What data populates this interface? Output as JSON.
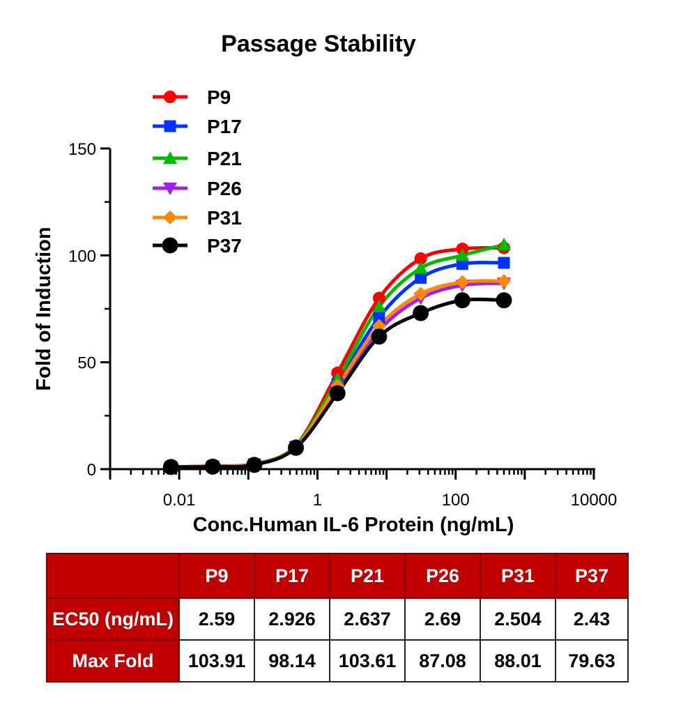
{
  "chart_data": {
    "type": "line",
    "title": "Passage Stability",
    "xlabel": "Conc.Human IL-6 Protein (ng/mL)",
    "ylabel": "Fold of Induction",
    "xscale": "log",
    "xlim": [
      0.001,
      10000
    ],
    "ylim": [
      0,
      150
    ],
    "xticks": [
      {
        "value": 0.01,
        "label": "0.01"
      },
      {
        "value": 1,
        "label": "1"
      },
      {
        "value": 100,
        "label": "100"
      },
      {
        "value": 10000,
        "label": "10000"
      }
    ],
    "yticks": [
      {
        "value": 0,
        "label": "0"
      },
      {
        "value": 50,
        "label": "50"
      },
      {
        "value": 100,
        "label": "100"
      },
      {
        "value": 150,
        "label": "150"
      }
    ],
    "grid": false,
    "legend_position": "top-left",
    "x": [
      0.0076,
      0.0305,
      0.122,
      0.488,
      1.95,
      7.81,
      31.25,
      125,
      500
    ],
    "series": [
      {
        "name": "P9",
        "color": "#ff0000",
        "marker": "circle",
        "values": [
          1.0,
          1.5,
          2.5,
          11,
          45,
          80,
          98.5,
          103,
          103.5
        ]
      },
      {
        "name": "P17",
        "color": "#0033ff",
        "marker": "square",
        "values": [
          1.0,
          1.3,
          2.3,
          10.5,
          40,
          71,
          89.5,
          96,
          96.5
        ]
      },
      {
        "name": "P21",
        "color": "#00bb00",
        "marker": "triangle-up",
        "values": [
          1.0,
          1.4,
          2.4,
          11,
          42,
          76,
          94,
          100,
          105
        ]
      },
      {
        "name": "P26",
        "color": "#a020f0",
        "marker": "triangle-down",
        "values": [
          1.0,
          1.3,
          2.2,
          10.5,
          38,
          65,
          80,
          86,
          87
        ]
      },
      {
        "name": "P31",
        "color": "#ff8800",
        "marker": "diamond",
        "values": [
          1.0,
          1.4,
          2.3,
          10.5,
          39,
          67,
          82,
          87.5,
          88
        ]
      },
      {
        "name": "P37",
        "color": "#000000",
        "marker": "circle-large",
        "values": [
          1.0,
          1.2,
          2.0,
          10,
          35.5,
          62,
          73,
          79,
          79
        ]
      }
    ]
  },
  "table": {
    "headers": [
      "P9",
      "P17",
      "P21",
      "P26",
      "P31",
      "P37"
    ],
    "rows": [
      {
        "label": "EC50 (ng/mL)",
        "values": [
          "2.59",
          "2.926",
          "2.637",
          "2.69",
          "2.504",
          "2.43"
        ]
      },
      {
        "label": "Max Fold",
        "values": [
          "103.91",
          "98.14",
          "103.61",
          "87.08",
          "88.01",
          "79.63"
        ]
      }
    ]
  }
}
